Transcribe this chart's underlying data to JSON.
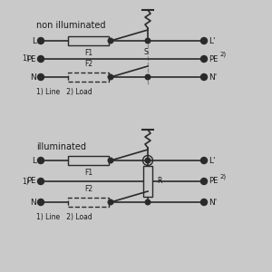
{
  "bg_color": "#c9c9c9",
  "line_color": "#2a2a2a",
  "text_color": "#1a1a1a",
  "title1": "non illuminated",
  "title2": "illuminated",
  "footer": "1) Line   2) Load"
}
